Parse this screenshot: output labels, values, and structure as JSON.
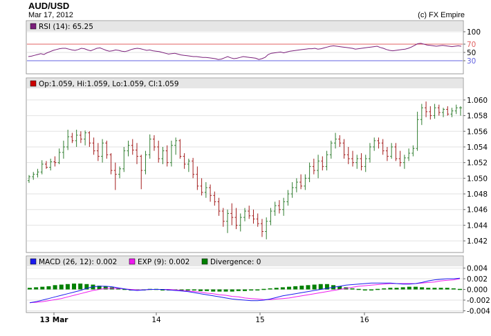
{
  "header": {
    "title": "AUD/USD",
    "date": "Mar 17, 2012",
    "copyright": "(c) FX Empire"
  },
  "colors": {
    "up": "#2f7d2f",
    "down": "#a31c1c",
    "rsi_line": "#7a1f7a",
    "macd": "#1a1aee",
    "signal": "#ee1aee",
    "divergence": "#008000",
    "level_70": "#e06060",
    "level_30": "#6060e0"
  },
  "chart_data": [
    {
      "type": "line",
      "panel": "rsi",
      "legend": "RSI (14): 65.25",
      "yticks": [
        100,
        70,
        50,
        30
      ],
      "ylim": [
        0,
        100
      ],
      "levels": [
        70,
        30
      ],
      "values": [
        40,
        41,
        43,
        45,
        47,
        45,
        49,
        52,
        55,
        57,
        59,
        60,
        60,
        58,
        56,
        55,
        57,
        60,
        59,
        56,
        54,
        57,
        60,
        61,
        58,
        55,
        53,
        54,
        56,
        55,
        53,
        52,
        54,
        57,
        59,
        60,
        59,
        57,
        55,
        56,
        54,
        53,
        52,
        50,
        48,
        46,
        47,
        48,
        46,
        44,
        43,
        42,
        41,
        40,
        40,
        39,
        38,
        38,
        37,
        36,
        35,
        33,
        34,
        37,
        40,
        37,
        35,
        36,
        38,
        40,
        39,
        38,
        37,
        36,
        33,
        35,
        38,
        45,
        48,
        49,
        50,
        51,
        49,
        51,
        53,
        54,
        55,
        56,
        57,
        58,
        59,
        59,
        60,
        58,
        59,
        61,
        63,
        65,
        66,
        65,
        64,
        63,
        62,
        61,
        60,
        58,
        59,
        60,
        61,
        62,
        63,
        64,
        65,
        62,
        60,
        57,
        55,
        54,
        55,
        56,
        57,
        58,
        60,
        63,
        67,
        71,
        72,
        70,
        68,
        67,
        66,
        65,
        66,
        67,
        66,
        65,
        64,
        65,
        66,
        65
      ]
    },
    {
      "type": "candlestick",
      "panel": "price",
      "legend": "Op:1.059, Hi:1.059, Lo:1.059, Cl:1.059",
      "yticks": [
        1.06,
        1.058,
        1.056,
        1.054,
        1.052,
        1.05,
        1.048,
        1.046,
        1.044,
        1.042
      ],
      "ylim": [
        1.0406,
        1.0614
      ],
      "xticks": [
        "13 Mar",
        "14",
        "15",
        "16"
      ],
      "bars": [
        [
          1.0497,
          1.0504,
          1.0494,
          1.0502
        ],
        [
          1.0502,
          1.0508,
          1.0498,
          1.0505
        ],
        [
          1.0505,
          1.0512,
          1.0501,
          1.0508
        ],
        [
          1.0508,
          1.0523,
          1.0505,
          1.0518
        ],
        [
          1.0518,
          1.0522,
          1.0512,
          1.0514
        ],
        [
          1.0514,
          1.0525,
          1.051,
          1.0521
        ],
        [
          1.0521,
          1.0528,
          1.0515,
          1.052
        ],
        [
          1.052,
          1.0538,
          1.0518,
          1.0533
        ],
        [
          1.0533,
          1.0548,
          1.0525,
          1.054
        ],
        [
          1.054,
          1.0562,
          1.0536,
          1.0553
        ],
        [
          1.0553,
          1.0558,
          1.0545,
          1.0548
        ],
        [
          1.0548,
          1.0562,
          1.054,
          1.0555
        ],
        [
          1.0555,
          1.056,
          1.0545,
          1.055
        ],
        [
          1.055,
          1.0561,
          1.0542,
          1.0558
        ],
        [
          1.0558,
          1.056,
          1.054,
          1.0545
        ],
        [
          1.0545,
          1.0552,
          1.053,
          1.0535
        ],
        [
          1.0535,
          1.0545,
          1.0522,
          1.0528
        ],
        [
          1.0528,
          1.055,
          1.052,
          1.0545
        ],
        [
          1.0545,
          1.0548,
          1.0525,
          1.053
        ],
        [
          1.053,
          1.0532,
          1.0505,
          1.051
        ],
        [
          1.051,
          1.052,
          1.0485,
          1.0505
        ],
        [
          1.0505,
          1.0515,
          1.05,
          1.0512
        ],
        [
          1.0512,
          1.054,
          1.0508,
          1.0535
        ],
        [
          1.0535,
          1.0548,
          1.0528,
          1.0542
        ],
        [
          1.0542,
          1.055,
          1.053,
          1.0536
        ],
        [
          1.0536,
          1.0545,
          1.0518,
          1.0528
        ],
        [
          1.0528,
          1.053,
          1.0486,
          1.051
        ],
        [
          1.051,
          1.0535,
          1.0505,
          1.053
        ],
        [
          1.053,
          1.0556,
          1.0525,
          1.055
        ],
        [
          1.055,
          1.0555,
          1.0535,
          1.054
        ],
        [
          1.054,
          1.0548,
          1.052,
          1.0525
        ],
        [
          1.0525,
          1.054,
          1.0518,
          1.0535
        ],
        [
          1.0535,
          1.0542,
          1.0515,
          1.052
        ],
        [
          1.052,
          1.0548,
          1.0515,
          1.0542
        ],
        [
          1.0542,
          1.0552,
          1.053,
          1.0548
        ],
        [
          1.0548,
          1.055,
          1.0525,
          1.0528
        ],
        [
          1.0528,
          1.0532,
          1.0512,
          1.0518
        ],
        [
          1.0518,
          1.0525,
          1.0508,
          1.0522
        ],
        [
          1.0522,
          1.0526,
          1.05,
          1.0505
        ],
        [
          1.0505,
          1.0515,
          1.0485,
          1.049
        ],
        [
          1.049,
          1.05,
          1.0478,
          1.0482
        ],
        [
          1.0482,
          1.0495,
          1.0475,
          1.0488
        ],
        [
          1.0488,
          1.0492,
          1.047,
          1.0478
        ],
        [
          1.0478,
          1.0483,
          1.0465,
          1.047
        ],
        [
          1.047,
          1.0475,
          1.0452,
          1.0458
        ],
        [
          1.0458,
          1.0462,
          1.0438,
          1.0445
        ],
        [
          1.0445,
          1.046,
          1.043,
          1.0455
        ],
        [
          1.0455,
          1.0468,
          1.044,
          1.045
        ],
        [
          1.045,
          1.0462,
          1.0435,
          1.044
        ],
        [
          1.044,
          1.0455,
          1.0432,
          1.045
        ],
        [
          1.045,
          1.0462,
          1.0445,
          1.0458
        ],
        [
          1.0458,
          1.0465,
          1.0448,
          1.0452
        ],
        [
          1.0452,
          1.046,
          1.0442,
          1.0448
        ],
        [
          1.0448,
          1.0455,
          1.0438,
          1.0442
        ],
        [
          1.0442,
          1.0448,
          1.0425,
          1.0432
        ],
        [
          1.0432,
          1.045,
          1.0422,
          1.0445
        ],
        [
          1.0445,
          1.0462,
          1.044,
          1.0458
        ],
        [
          1.0458,
          1.047,
          1.0452,
          1.0465
        ],
        [
          1.0465,
          1.0472,
          1.0455,
          1.046
        ],
        [
          1.046,
          1.0475,
          1.0452,
          1.047
        ],
        [
          1.047,
          1.0485,
          1.0465,
          1.048
        ],
        [
          1.048,
          1.0495,
          1.0475,
          1.0488
        ],
        [
          1.0488,
          1.05,
          1.0482,
          1.0495
        ],
        [
          1.0495,
          1.0505,
          1.0486,
          1.049
        ],
        [
          1.049,
          1.0505,
          1.0485,
          1.05
        ],
        [
          1.05,
          1.052,
          1.0495,
          1.0515
        ],
        [
          1.0515,
          1.0525,
          1.0505,
          1.051
        ],
        [
          1.051,
          1.053,
          1.05,
          1.0522
        ],
        [
          1.0522,
          1.0528,
          1.051,
          1.0515
        ],
        [
          1.0515,
          1.0535,
          1.051,
          1.053
        ],
        [
          1.053,
          1.0548,
          1.0525,
          1.0545
        ],
        [
          1.0545,
          1.0558,
          1.0538,
          1.055
        ],
        [
          1.055,
          1.0555,
          1.054,
          1.0545
        ],
        [
          1.0545,
          1.055,
          1.0525,
          1.053
        ],
        [
          1.053,
          1.054,
          1.0518,
          1.0525
        ],
        [
          1.0525,
          1.0535,
          1.0515,
          1.052
        ],
        [
          1.052,
          1.053,
          1.0512,
          1.0525
        ],
        [
          1.0525,
          1.0532,
          1.051,
          1.0515
        ],
        [
          1.0515,
          1.053,
          1.0508,
          1.0525
        ],
        [
          1.0525,
          1.0545,
          1.052,
          1.054
        ],
        [
          1.054,
          1.0552,
          1.0535,
          1.0548
        ],
        [
          1.0548,
          1.0552,
          1.0538,
          1.0545
        ],
        [
          1.0545,
          1.055,
          1.053,
          1.0535
        ],
        [
          1.0535,
          1.054,
          1.0522,
          1.0528
        ],
        [
          1.0528,
          1.0545,
          1.0525,
          1.054
        ],
        [
          1.054,
          1.0545,
          1.0522,
          1.0525
        ],
        [
          1.0525,
          1.0535,
          1.0515,
          1.052
        ],
        [
          1.052,
          1.053,
          1.0512,
          1.0526
        ],
        [
          1.0526,
          1.0538,
          1.0522,
          1.0532
        ],
        [
          1.0532,
          1.0542,
          1.0528,
          1.0538
        ],
        [
          1.0538,
          1.0585,
          1.0535,
          1.0575
        ],
        [
          1.0575,
          1.0595,
          1.0568,
          1.059
        ],
        [
          1.059,
          1.0598,
          1.0578,
          1.0585
        ],
        [
          1.0585,
          1.0592,
          1.0575,
          1.058
        ],
        [
          1.058,
          1.0595,
          1.0576,
          1.059
        ],
        [
          1.059,
          1.0594,
          1.058,
          1.0584
        ],
        [
          1.0584,
          1.059,
          1.0578,
          1.0588
        ],
        [
          1.0588,
          1.0592,
          1.058,
          1.0582
        ],
        [
          1.0582,
          1.059,
          1.0578,
          1.0586
        ],
        [
          1.0586,
          1.0594,
          1.0582,
          1.059
        ],
        [
          1.059,
          1.0592,
          1.058,
          1.059
        ]
      ]
    },
    {
      "type": "line",
      "panel": "macd",
      "legend": [
        "MACD (26, 12): 0.002",
        "EXP (9): 0.002",
        "Divergence: 0"
      ],
      "yticks": [
        0.004,
        0.002,
        0.0,
        -0.002,
        -0.004
      ],
      "ylim": [
        -0.0042,
        0.0042
      ],
      "macd": [
        -0.0025,
        -0.0023,
        -0.002,
        -0.0017,
        -0.0014,
        -0.0011,
        -0.0008,
        -0.0005,
        -0.0002,
        0.0002,
        0.0005,
        0.0006,
        0.0006,
        0.0005,
        0.0003,
        0.0001,
        -0.0001,
        -0.0002,
        -0.0001,
        0.0,
        0.0,
        0.0,
        -0.0001,
        -0.0002,
        -0.0003,
        -0.0004,
        -0.0006,
        -0.0008,
        -0.001,
        -0.0012,
        -0.0014,
        -0.0016,
        -0.0018,
        -0.0019,
        -0.002,
        -0.0021,
        -0.0021,
        -0.002,
        -0.0018,
        -0.0015,
        -0.0012,
        -0.001,
        -0.0008,
        -0.0006,
        -0.0004,
        -0.0002,
        0.0,
        0.0002,
        0.0004,
        0.0006,
        0.0008,
        0.0009,
        0.001,
        0.0011,
        0.0012,
        0.0012,
        0.0012,
        0.0012,
        0.0011,
        0.001,
        0.001,
        0.0011,
        0.0013,
        0.0016,
        0.0018,
        0.0019,
        0.002,
        0.002,
        0.0021
      ],
      "signal": [
        -0.0025,
        -0.0024,
        -0.0023,
        -0.0021,
        -0.0019,
        -0.0017,
        -0.0014,
        -0.0011,
        -0.0008,
        -0.0005,
        -0.0002,
        0.0,
        0.0002,
        0.0002,
        0.0002,
        0.0001,
        0.0,
        -0.0001,
        -0.0001,
        0.0,
        0.0,
        0.0,
        0.0,
        -0.0001,
        -0.0002,
        -0.0003,
        -0.0004,
        -0.0005,
        -0.0007,
        -0.0008,
        -0.001,
        -0.0011,
        -0.0013,
        -0.0014,
        -0.0016,
        -0.0017,
        -0.0018,
        -0.0019,
        -0.0019,
        -0.0018,
        -0.0017,
        -0.0016,
        -0.0014,
        -0.0012,
        -0.001,
        -0.0008,
        -0.0006,
        -0.0004,
        -0.0002,
        0.0,
        0.0002,
        0.0004,
        0.0006,
        0.0007,
        0.0008,
        0.0009,
        0.001,
        0.0011,
        0.0011,
        0.0011,
        0.0011,
        0.0011,
        0.0012,
        0.0013,
        0.0014,
        0.0016,
        0.0017,
        0.0018,
        0.002
      ],
      "divergence": [
        0.0003,
        0.0004,
        0.0005,
        0.0006,
        0.0008,
        0.0009,
        0.001,
        0.0011,
        0.0011,
        0.001,
        0.0009,
        0.0007,
        0.0006,
        0.0004,
        0.0002,
        0.0001,
        -0.0001,
        -0.0001,
        0.0,
        0.0001,
        0.0001,
        0.0,
        -0.0001,
        -0.0001,
        -0.0002,
        -0.0002,
        -0.0002,
        -0.0003,
        -0.0003,
        -0.0004,
        -0.0004,
        -0.0004,
        -0.0004,
        -0.0003,
        -0.0003,
        -0.0002,
        -0.0001,
        0.0001,
        0.0002,
        0.0003,
        0.0004,
        0.0005,
        0.0006,
        0.0007,
        0.0008,
        0.0009,
        0.001,
        0.001,
        0.0008,
        0.0006,
        0.0004,
        0.0002,
        0.0001,
        -0.0001,
        0.0,
        0.0001,
        0.0002,
        0.0003,
        0.0003,
        0.0004,
        0.0005,
        0.0005,
        0.0004,
        0.0003,
        0.0003,
        0.0003,
        0.0003,
        0.0002,
        0.0001
      ]
    }
  ]
}
